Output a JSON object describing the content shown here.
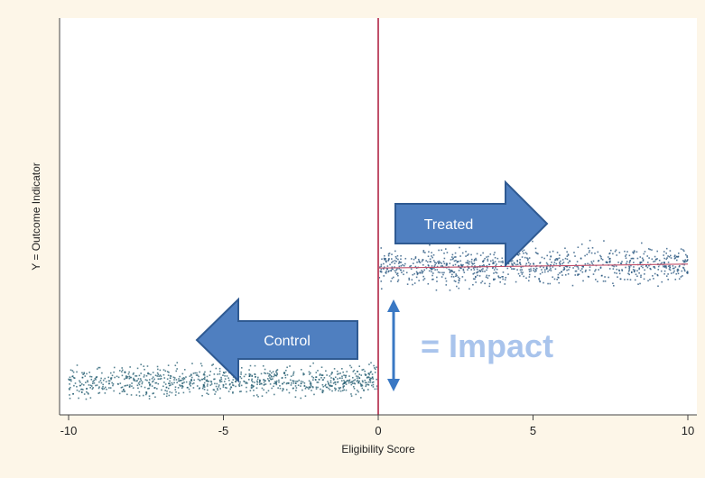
{
  "colors": {
    "background": "#fdf6e8",
    "plot_background": "#ffffff",
    "cutoff_line": "#c0506a",
    "points_control": "#1f5a6e",
    "points_treated": "#1f4f7a",
    "fit_line_treated": "#c0506a",
    "arrow_fill": "#4f7fc0",
    "arrow_stroke": "#2f5a92",
    "impact_text": "#a9c4ec",
    "impact_arrow": "#3a78c4"
  },
  "annotations": {
    "treated": "Treated",
    "control": "Control",
    "impact": "= Impact"
  },
  "chart_data": {
    "type": "scatter",
    "title": "",
    "xlabel": "Eligibility Score",
    "ylabel": "Y = Outcome Indicator",
    "xlim": [
      -10,
      10
    ],
    "ylim": [
      0,
      10
    ],
    "x_ticks": [
      -10,
      -5,
      0,
      5,
      10
    ],
    "x_tick_labels": [
      "-10",
      "-5",
      "0",
      "5",
      "10"
    ],
    "cutoff_x": 0,
    "grid": false,
    "series": [
      {
        "group": "control",
        "x_range": [
          -10,
          0
        ],
        "y_intercept_at_cutoff": 0.9,
        "slope": 0.01,
        "spread": 0.18,
        "n_points": 900
      },
      {
        "group": "treated",
        "x_range": [
          0,
          10
        ],
        "y_intercept_at_cutoff": 3.7,
        "slope": 0.01,
        "spread": 0.22,
        "n_points": 900
      }
    ]
  }
}
